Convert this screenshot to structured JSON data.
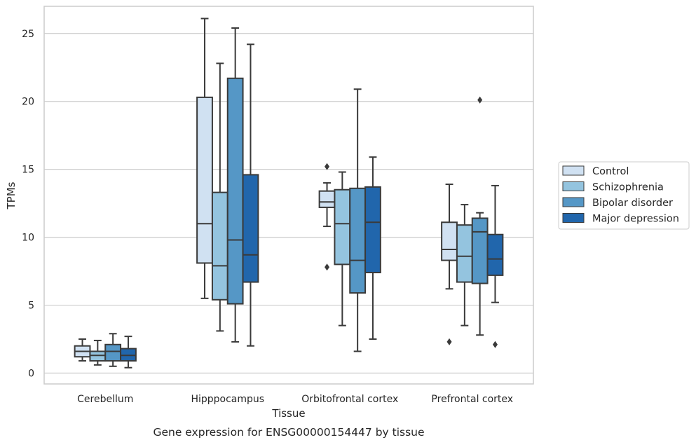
{
  "chart_data": {
    "type": "box",
    "title": "",
    "caption": "Gene expression for ENSG00000154447 by tissue",
    "xlabel": "Tissue",
    "ylabel": "TPMs",
    "ylim": [
      -0.8,
      27.0
    ],
    "yticks": [
      0,
      5,
      10,
      15,
      20,
      25
    ],
    "ytick_labels": [
      "0",
      "5",
      "10",
      "15",
      "20",
      "25"
    ],
    "grid": "horizontal",
    "legend_position": "right",
    "categories": [
      "Cerebellum",
      "Hipppocampus",
      "Orbitofrontal cortex",
      "Prefrontal cortex"
    ],
    "series": [
      {
        "name": "Control",
        "color": "#d0e1f2",
        "boxes": [
          {
            "whislo": 0.9,
            "q1": 1.2,
            "med": 1.6,
            "q3": 2.0,
            "whishi": 2.5,
            "fliers": []
          },
          {
            "whislo": 5.5,
            "q1": 8.1,
            "med": 11.0,
            "q3": 20.3,
            "whishi": 26.1,
            "fliers": []
          },
          {
            "whislo": 10.8,
            "q1": 12.2,
            "med": 12.6,
            "q3": 13.4,
            "whishi": 14.0,
            "fliers": [
              15.2,
              7.8
            ]
          },
          {
            "whislo": 6.2,
            "q1": 8.3,
            "med": 9.1,
            "q3": 11.1,
            "whishi": 13.9,
            "fliers": [
              2.3
            ]
          }
        ]
      },
      {
        "name": "Schizophrenia",
        "color": "#94c4df",
        "boxes": [
          {
            "whislo": 0.6,
            "q1": 0.9,
            "med": 1.3,
            "q3": 1.6,
            "whishi": 2.4,
            "fliers": []
          },
          {
            "whislo": 3.1,
            "q1": 5.4,
            "med": 7.9,
            "q3": 13.3,
            "whishi": 22.8,
            "fliers": []
          },
          {
            "whislo": 3.5,
            "q1": 8.0,
            "med": 11.0,
            "q3": 13.5,
            "whishi": 14.8,
            "fliers": []
          },
          {
            "whislo": 3.5,
            "q1": 6.7,
            "med": 8.6,
            "q3": 10.9,
            "whishi": 12.4,
            "fliers": []
          }
        ]
      },
      {
        "name": "Bipolar disorder",
        "color": "#5597c6",
        "boxes": [
          {
            "whislo": 0.5,
            "q1": 0.9,
            "med": 1.6,
            "q3": 2.1,
            "whishi": 2.9,
            "fliers": []
          },
          {
            "whislo": 2.3,
            "q1": 5.1,
            "med": 9.8,
            "q3": 21.7,
            "whishi": 25.4,
            "fliers": []
          },
          {
            "whislo": 1.6,
            "q1": 5.9,
            "med": 8.3,
            "q3": 13.6,
            "whishi": 20.9,
            "fliers": []
          },
          {
            "whislo": 2.8,
            "q1": 6.6,
            "med": 10.4,
            "q3": 11.4,
            "whishi": 11.8,
            "fliers": [
              20.1
            ]
          }
        ]
      },
      {
        "name": "Major depression",
        "color": "#2166ac",
        "boxes": [
          {
            "whislo": 0.4,
            "q1": 0.9,
            "med": 1.3,
            "q3": 1.8,
            "whishi": 2.7,
            "fliers": []
          },
          {
            "whislo": 2.0,
            "q1": 6.7,
            "med": 8.7,
            "q3": 14.6,
            "whishi": 24.2,
            "fliers": []
          },
          {
            "whislo": 2.5,
            "q1": 7.4,
            "med": 11.1,
            "q3": 13.7,
            "whishi": 15.9,
            "fliers": []
          },
          {
            "whislo": 5.2,
            "q1": 7.2,
            "med": 8.4,
            "q3": 10.2,
            "whishi": 13.8,
            "fliers": [
              2.1
            ]
          }
        ]
      }
    ]
  }
}
